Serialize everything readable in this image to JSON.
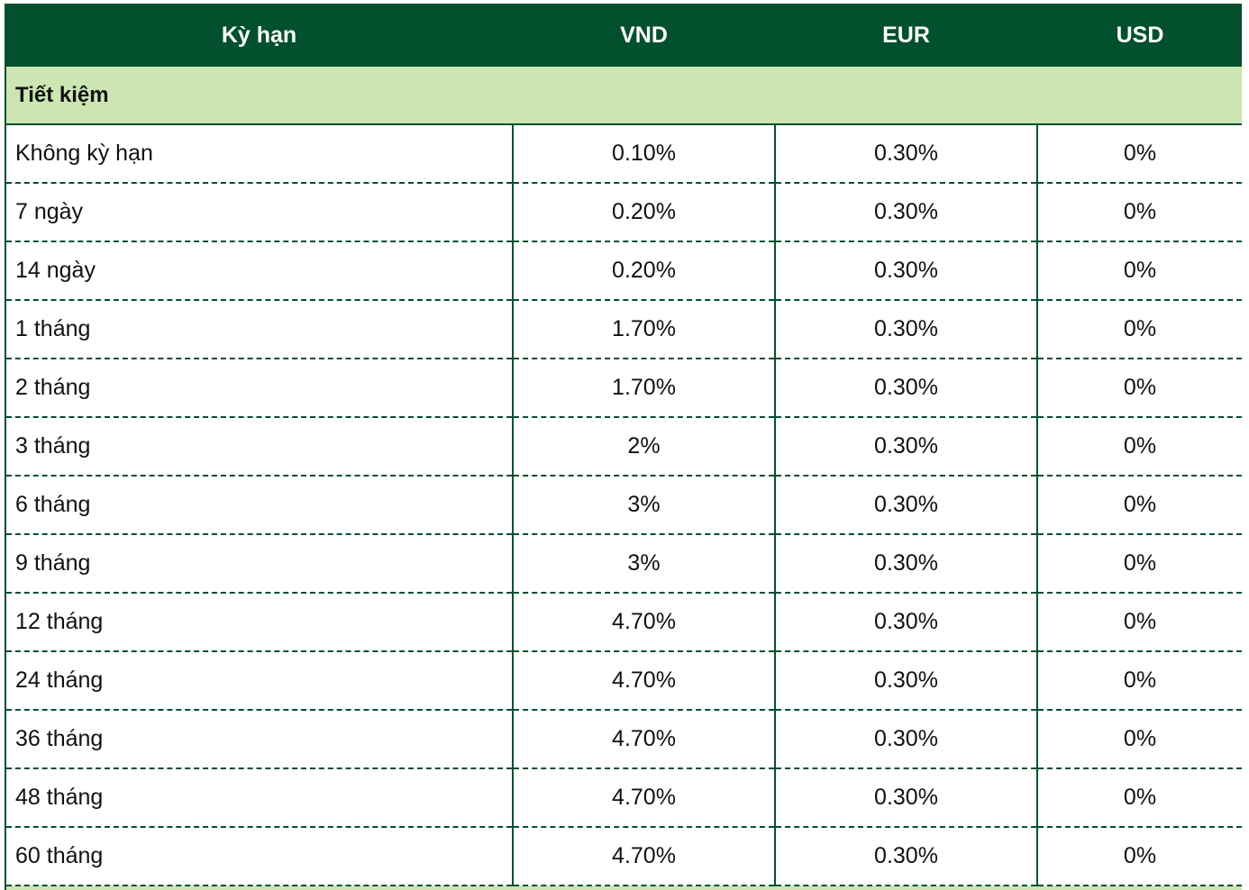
{
  "colors": {
    "header_bg": "#03502f",
    "header_text": "#ffffff",
    "group_bg": "#cbe5b3",
    "border": "#03502f"
  },
  "table": {
    "headers": [
      "Kỳ hạn",
      "VND",
      "EUR",
      "USD"
    ],
    "group_label": "Tiết kiệm",
    "rows": [
      {
        "term": "Không kỳ hạn",
        "vnd": "0.10%",
        "eur": "0.30%",
        "usd": "0%"
      },
      {
        "term": "7 ngày",
        "vnd": "0.20%",
        "eur": "0.30%",
        "usd": "0%"
      },
      {
        "term": "14 ngày",
        "vnd": "0.20%",
        "eur": "0.30%",
        "usd": "0%"
      },
      {
        "term": "1 tháng",
        "vnd": "1.70%",
        "eur": "0.30%",
        "usd": "0%"
      },
      {
        "term": "2 tháng",
        "vnd": "1.70%",
        "eur": "0.30%",
        "usd": "0%"
      },
      {
        "term": "3 tháng",
        "vnd": "2%",
        "eur": "0.30%",
        "usd": "0%"
      },
      {
        "term": "6 tháng",
        "vnd": "3%",
        "eur": "0.30%",
        "usd": "0%"
      },
      {
        "term": "9 tháng",
        "vnd": "3%",
        "eur": "0.30%",
        "usd": "0%"
      },
      {
        "term": "12 tháng",
        "vnd": "4.70%",
        "eur": "0.30%",
        "usd": "0%"
      },
      {
        "term": "24 tháng",
        "vnd": "4.70%",
        "eur": "0.30%",
        "usd": "0%"
      },
      {
        "term": "36 tháng",
        "vnd": "4.70%",
        "eur": "0.30%",
        "usd": "0%"
      },
      {
        "term": "48 tháng",
        "vnd": "4.70%",
        "eur": "0.30%",
        "usd": "0%"
      },
      {
        "term": "60 tháng",
        "vnd": "4.70%",
        "eur": "0.30%",
        "usd": "0%"
      }
    ]
  }
}
